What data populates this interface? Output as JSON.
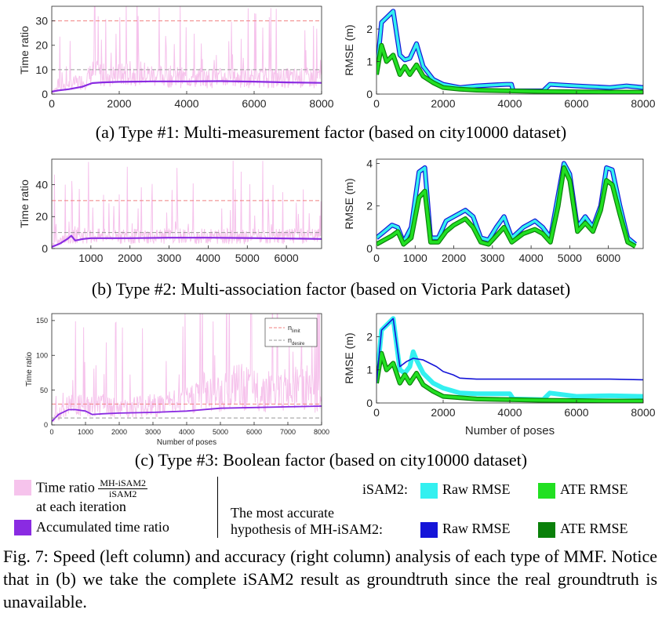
{
  "captions": {
    "a": "(a) Type #1: Multi-measurement factor (based on city10000 dataset)",
    "b": "(b) Type #2: Multi-association factor (based on Victoria Park dataset)",
    "c": "(c) Type #3: Boolean factor (based on city10000 dataset)"
  },
  "legend": {
    "time_ratio_label": "Time ratio",
    "time_ratio_num": "MH-iSAM2",
    "time_ratio_den": "iSAM2",
    "time_ratio_suffix": "at each iteration",
    "accumulated_label": "Accumulated time ratio",
    "isam2_label": "iSAM2:",
    "most_accurate_line1": "The most accurate",
    "most_accurate_line2": "hypothesis of MH-iSAM2:",
    "raw_rmse": "Raw RMSE",
    "ate_rmse": "ATE RMSE",
    "raw_rmse_2": "Raw RMSE",
    "ate_rmse_2": "ATE RMSE",
    "colors": {
      "time_ratio": "#f6c3ec",
      "accumulated": "#8a2be2",
      "isam2_raw": "#33f0f0",
      "isam2_ate": "#22e022",
      "mh_raw": "#1414d8",
      "mh_ate": "#0a800a"
    }
  },
  "figure_caption": "Fig. 7:  Speed (left column) and accuracy (right column) analysis of each type of MMF. Notice that in (b) we take the complete iSAM2 result as groundtruth since the real groundtruth is unavailable.",
  "chart_data": [
    {
      "id": "a-left",
      "type": "line",
      "ylabel": "Time ratio",
      "xlabel": "",
      "xlim": [
        0,
        8000
      ],
      "ylim": [
        0,
        36
      ],
      "xticks": [
        0,
        2000,
        4000,
        6000,
        8000
      ],
      "yticks": [
        0,
        10,
        20,
        30
      ],
      "ref_lines": [
        {
          "y": 30,
          "color": "#f08080"
        },
        {
          "y": 10,
          "color": "#999999"
        }
      ],
      "series": [
        {
          "kind": "spiky",
          "color": "#f6c3ec",
          "x": [
            0,
            300,
            600,
            1000,
            1200,
            1600,
            2000,
            2500,
            3000,
            4000,
            5000,
            6000,
            7000,
            8000
          ],
          "y": [
            1,
            3,
            4,
            5,
            8,
            7,
            7,
            8,
            7,
            6,
            6,
            6,
            6,
            6
          ]
        },
        {
          "kind": "line",
          "color": "#8a2be2",
          "width": 2.2,
          "x": [
            0,
            200,
            500,
            900,
            1200,
            1500,
            2000,
            3000,
            4000,
            5000,
            6000,
            7000,
            8000
          ],
          "y": [
            1,
            1.5,
            2,
            3,
            4.5,
            4.8,
            5,
            5.2,
            5.2,
            5.3,
            5.1,
            4.8,
            4.6
          ]
        }
      ]
    },
    {
      "id": "a-right",
      "type": "line",
      "ylabel": "RMSE (m)",
      "xlabel": "",
      "xlim": [
        0,
        8000
      ],
      "ylim": [
        0,
        2.7
      ],
      "xticks": [
        0,
        2000,
        4000,
        6000,
        8000
      ],
      "yticks": [
        0,
        1,
        2
      ],
      "series": [
        {
          "kind": "band",
          "color": "#33f0f0",
          "edge": "#1414d8",
          "x": [
            0,
            150,
            300,
            500,
            700,
            850,
            1000,
            1200,
            1400,
            1700,
            2000,
            2500,
            3000,
            3500,
            3900,
            4050,
            4100,
            5000,
            5200,
            6000,
            7000,
            7500,
            8000
          ],
          "y": [
            0.6,
            2.2,
            2.35,
            2.55,
            1.2,
            1.05,
            1.1,
            1.55,
            0.85,
            0.45,
            0.3,
            0.2,
            0.25,
            0.28,
            0.3,
            0.3,
            0.1,
            0.1,
            0.3,
            0.25,
            0.2,
            0.25,
            0.2
          ]
        },
        {
          "kind": "band",
          "color": "#22e022",
          "edge": "#0a800a",
          "x": [
            0,
            150,
            300,
            500,
            700,
            850,
            1000,
            1200,
            1400,
            1700,
            2000,
            2500,
            3000,
            4000,
            5000,
            6000,
            7000,
            8000
          ],
          "y": [
            0.6,
            1.5,
            1.0,
            1.2,
            0.6,
            0.85,
            0.6,
            0.9,
            0.55,
            0.35,
            0.2,
            0.15,
            0.12,
            0.1,
            0.08,
            0.07,
            0.06,
            0.06
          ]
        }
      ]
    },
    {
      "id": "b-left",
      "type": "line",
      "ylabel": "Time ratio",
      "xlabel": "",
      "xlim": [
        0,
        6900
      ],
      "ylim": [
        0,
        56
      ],
      "xticks": [
        1000,
        2000,
        3000,
        4000,
        5000,
        6000
      ],
      "yticks": [
        0,
        20,
        40
      ],
      "ref_lines": [
        {
          "y": 30,
          "color": "#f08080"
        },
        {
          "y": 10,
          "color": "#999999"
        }
      ],
      "series": [
        {
          "kind": "spiky",
          "color": "#f6c3ec",
          "x": [
            0,
            300,
            600,
            1000,
            2000,
            3000,
            4000,
            5000,
            6000,
            6900
          ],
          "y": [
            2,
            5,
            8,
            7,
            7,
            7,
            7,
            7,
            7,
            7
          ]
        },
        {
          "kind": "line",
          "color": "#8a2be2",
          "width": 2.2,
          "x": [
            0,
            200,
            400,
            500,
            600,
            800,
            1000,
            2000,
            3000,
            4000,
            5000,
            6000,
            6900
          ],
          "y": [
            1,
            3,
            6,
            8,
            5,
            6,
            6.5,
            6.5,
            6.8,
            6.8,
            6.6,
            6.3,
            6.0
          ]
        }
      ]
    },
    {
      "id": "b-right",
      "type": "line",
      "ylabel": "RMSE (m)",
      "xlabel": "",
      "xlim": [
        0,
        6900
      ],
      "ylim": [
        0,
        4.2
      ],
      "xticks": [
        0,
        1000,
        2000,
        3000,
        4000,
        5000,
        6000
      ],
      "yticks": [
        0,
        2,
        4
      ],
      "series": [
        {
          "kind": "band",
          "color": "#33f0f0",
          "edge": "#1414d8",
          "x": [
            0,
            200,
            400,
            550,
            700,
            900,
            1100,
            1250,
            1400,
            1600,
            1800,
            2000,
            2300,
            2500,
            2700,
            2900,
            3100,
            3300,
            3500,
            3800,
            4100,
            4300,
            4500,
            4700,
            4850,
            5000,
            5200,
            5400,
            5600,
            5800,
            5950,
            6100,
            6300,
            6500,
            6700
          ],
          "y": [
            0.5,
            0.8,
            1.1,
            1.0,
            0.3,
            1.0,
            3.6,
            3.8,
            0.5,
            0.5,
            1.3,
            1.5,
            1.8,
            1.5,
            0.5,
            0.4,
            1.0,
            1.5,
            0.5,
            1.0,
            1.3,
            1.0,
            0.5,
            2.5,
            4.0,
            3.5,
            1.0,
            1.5,
            1.0,
            2.0,
            3.8,
            3.7,
            2.0,
            0.5,
            0.2
          ]
        },
        {
          "kind": "band",
          "color": "#22e022",
          "edge": "#0a800a",
          "x": [
            0,
            200,
            400,
            550,
            700,
            900,
            1100,
            1250,
            1400,
            1600,
            1800,
            2000,
            2300,
            2500,
            2700,
            2900,
            3100,
            3300,
            3500,
            3800,
            4100,
            4300,
            4500,
            4700,
            4850,
            5000,
            5200,
            5400,
            5600,
            5800,
            5950,
            6100,
            6300,
            6500,
            6700
          ],
          "y": [
            0.2,
            0.4,
            0.6,
            0.8,
            0.2,
            0.5,
            2.4,
            2.7,
            0.3,
            0.3,
            0.8,
            1.1,
            1.4,
            1.0,
            0.3,
            0.2,
            0.6,
            1.0,
            0.3,
            0.7,
            0.9,
            0.7,
            0.3,
            2.0,
            3.8,
            3.2,
            0.8,
            1.2,
            0.8,
            1.8,
            3.2,
            3.0,
            1.6,
            0.3,
            0.1
          ]
        }
      ]
    },
    {
      "id": "c-left",
      "type": "line",
      "ylabel": "Time ratio",
      "xlabel": "Number of poses",
      "xlim": [
        0,
        8000
      ],
      "ylim": [
        0,
        160
      ],
      "xticks": [
        0,
        1000,
        2000,
        3000,
        4000,
        5000,
        6000,
        7000,
        8000
      ],
      "yticks": [
        0,
        50,
        100,
        150
      ],
      "ref_lines": [
        {
          "y": 30,
          "color": "#f08080"
        },
        {
          "y": 10,
          "color": "#999999"
        }
      ],
      "legend": [
        {
          "label": "n",
          "sub": "limit",
          "color": "#f08080"
        },
        {
          "label": "n",
          "sub": "desire",
          "color": "#999999"
        }
      ],
      "series": [
        {
          "kind": "spiky",
          "color": "#f6c3ec",
          "x": [
            0,
            500,
            1000,
            2000,
            3000,
            4000,
            4500,
            5000,
            5500,
            6000,
            7000,
            7500,
            8000
          ],
          "y": [
            5,
            25,
            25,
            25,
            25,
            30,
            45,
            40,
            50,
            45,
            45,
            50,
            40
          ]
        },
        {
          "kind": "line",
          "color": "#8a2be2",
          "width": 1.8,
          "x": [
            0,
            200,
            500,
            700,
            1000,
            1200,
            1500,
            2000,
            3000,
            4000,
            5000,
            6000,
            7000,
            8000
          ],
          "y": [
            5,
            15,
            22,
            22,
            20,
            15,
            16,
            17,
            18,
            20,
            24,
            25,
            26,
            27
          ]
        }
      ]
    },
    {
      "id": "c-right",
      "type": "line",
      "ylabel": "RMSE (m)",
      "xlabel": "Number of poses",
      "xlim": [
        0,
        8000
      ],
      "ylim": [
        0,
        2.7
      ],
      "xticks": [
        0,
        2000,
        4000,
        6000,
        8000
      ],
      "yticks": [
        0,
        1,
        2
      ],
      "series": [
        {
          "kind": "band",
          "color": "#33f0f0",
          "edge": "#33f0f0",
          "x": [
            0,
            150,
            300,
            500,
            700,
            850,
            1000,
            1100,
            1200,
            1400,
            1700,
            2000,
            2500,
            3000,
            4000,
            4100,
            5000,
            5200,
            6000,
            7000,
            8000
          ],
          "y": [
            0.6,
            2.2,
            2.35,
            2.55,
            1.0,
            0.9,
            1.1,
            1.55,
            1.3,
            0.9,
            0.6,
            0.45,
            0.3,
            0.28,
            0.28,
            0.12,
            0.1,
            0.3,
            0.2,
            0.22,
            0.2
          ]
        },
        {
          "kind": "band",
          "color": "#22e022",
          "edge": "#0a800a",
          "x": [
            0,
            150,
            300,
            500,
            700,
            850,
            1000,
            1200,
            1400,
            1700,
            2000,
            3000,
            4000,
            5000,
            6000,
            7000,
            8000
          ],
          "y": [
            0.6,
            1.5,
            1.0,
            1.2,
            0.6,
            0.85,
            0.6,
            0.9,
            0.55,
            0.35,
            0.2,
            0.12,
            0.1,
            0.08,
            0.07,
            0.06,
            0.06
          ]
        },
        {
          "kind": "line",
          "color": "#1414d8",
          "width": 1.6,
          "x": [
            0,
            150,
            300,
            500,
            700,
            900,
            1100,
            1400,
            1800,
            2000,
            2300,
            2500,
            3000,
            4000,
            5000,
            6000,
            7000,
            8000
          ],
          "y": [
            0.6,
            2.2,
            2.35,
            2.55,
            1.1,
            1.25,
            1.35,
            1.3,
            1.1,
            0.95,
            0.85,
            0.75,
            0.72,
            0.72,
            0.72,
            0.72,
            0.72,
            0.7
          ]
        }
      ]
    }
  ]
}
